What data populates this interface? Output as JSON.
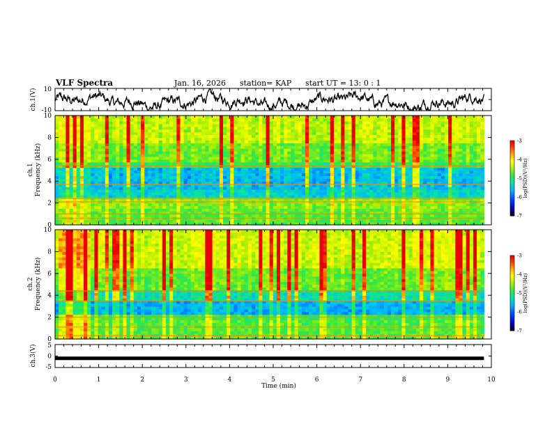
{
  "header": {
    "title": "VLF Spectra",
    "date": "Jan. 16, 2026",
    "station": "station= KAP",
    "start": "start  UT =  13: 0  : 1"
  },
  "colors": {
    "trace": "#000000",
    "colormap": [
      "#000000",
      "#0000c8",
      "#0046ff",
      "#00b4ff",
      "#00e6a0",
      "#3ce63c",
      "#b4f000",
      "#ffff00",
      "#ffaa00",
      "#ff3c00",
      "#e60000",
      "#ffffff"
    ]
  },
  "chart_data": [
    {
      "type": "line",
      "name": "ch1-waveform",
      "ylabel": "ch.1(V)",
      "ylim": [
        -10,
        10
      ],
      "yticks": [
        "10",
        "-10"
      ],
      "xlim": [
        0,
        10
      ],
      "description_values": {
        "baseline": -2,
        "range": [
          -8,
          6
        ]
      }
    },
    {
      "type": "heatmap",
      "name": "ch1-spectrogram",
      "ylabel": "ch.1\nFrequency (kHz)",
      "ylabel_lines": [
        "ch.1",
        "Frequency (kHz)"
      ],
      "ylim": [
        0,
        10
      ],
      "yticks": [
        "0",
        "2",
        "4",
        "6",
        "8",
        "10"
      ],
      "xlim": [
        0,
        10
      ],
      "data_end_min": 9.83,
      "colorbar": {
        "label": "log(PSD)(V²/Hz)",
        "range": [
          -7,
          -3
        ],
        "ticks": [
          "-3",
          "-4",
          "-5",
          "-6",
          "-7"
        ]
      }
    },
    {
      "type": "heatmap",
      "name": "ch2-spectrogram",
      "ylabel": "ch.2\nFrequency (kHz)",
      "ylabel_lines": [
        "ch.2",
        "Frequency (kHz)"
      ],
      "ylim": [
        0,
        10
      ],
      "yticks": [
        "0",
        "2",
        "4",
        "6",
        "8",
        "10"
      ],
      "xlim": [
        0,
        10
      ],
      "data_end_min": 9.83,
      "colorbar": {
        "label": "log(PSD)(V²/Hz)",
        "range": [
          -7,
          -3
        ],
        "ticks": [
          "-3",
          "-4",
          "-5",
          "-6",
          "-7"
        ]
      }
    },
    {
      "type": "line",
      "name": "ch3-waveform",
      "ylabel": "ch.3(V)",
      "ylim": [
        -5,
        5
      ],
      "yticks": [
        "5",
        "0",
        "-5"
      ],
      "xlim": [
        0,
        10
      ],
      "description_values": {
        "level": -1
      }
    }
  ],
  "xaxis": {
    "label": "Time (min)",
    "ticks": [
      "0",
      "1",
      "2",
      "3",
      "4",
      "5",
      "6",
      "7",
      "8",
      "9",
      "10"
    ]
  }
}
